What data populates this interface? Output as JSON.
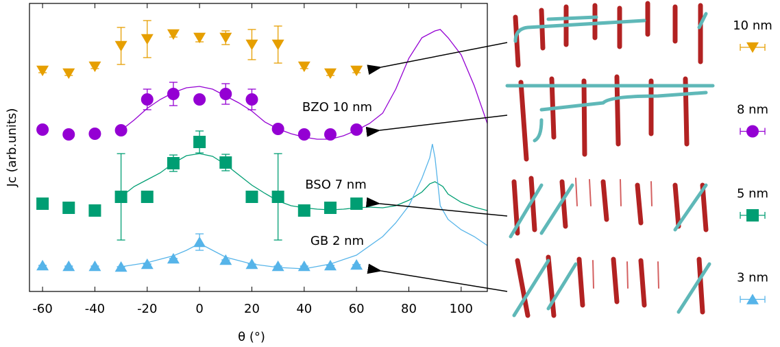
{
  "chart_data": {
    "type": "scatter",
    "x_label": "θ (°)",
    "y_label": "Jc (arb.units)",
    "xlim": [
      -65,
      110
    ],
    "ylim": [
      0,
      420
    ],
    "xticks": [
      -60,
      -40,
      -20,
      0,
      20,
      40,
      60,
      80,
      100
    ],
    "x": [
      -60,
      -50,
      -40,
      -30,
      -20,
      -10,
      0,
      10,
      20,
      30,
      40,
      50,
      60
    ],
    "series": [
      {
        "name": "10 nm",
        "color": "#e69f00",
        "marker": "triangle-down",
        "values": [
          322,
          318,
          328,
          358,
          368,
          375,
          370,
          370,
          360,
          360,
          328,
          318,
          322
        ],
        "errors": [
          3,
          3,
          3,
          27,
          27,
          4,
          6,
          10,
          22,
          27,
          3,
          3,
          3
        ]
      },
      {
        "name": "8 nm",
        "color": "#9400d3",
        "marker": "circle",
        "values": [
          236,
          229,
          230,
          235,
          280,
          288,
          280,
          288,
          280,
          237,
          229,
          229,
          236
        ],
        "errors": [
          0,
          0,
          0,
          0,
          15,
          17,
          0,
          15,
          15,
          0,
          0,
          0,
          0
        ]
      },
      {
        "name": "5 nm",
        "color": "#009e73",
        "marker": "square",
        "values": [
          128,
          122,
          118,
          138,
          138,
          187,
          218,
          188,
          138,
          138,
          118,
          122,
          128
        ],
        "errors": [
          0,
          0,
          0,
          63,
          0,
          12,
          16,
          12,
          0,
          63,
          0,
          0,
          0
        ]
      },
      {
        "name": "3 nm",
        "color": "#56b4e9",
        "marker": "triangle-up",
        "values": [
          38,
          37,
          37,
          36,
          40,
          48,
          72,
          46,
          40,
          37,
          37,
          38,
          39
        ],
        "errors": [
          0,
          0,
          0,
          0,
          0,
          0,
          12,
          0,
          0,
          0,
          0,
          0,
          0
        ]
      }
    ],
    "curves": [
      {
        "color": "#9400d3",
        "x": [
          -30,
          -25,
          -20,
          -15,
          -10,
          -5,
          0,
          5,
          10,
          15,
          20,
          25,
          30,
          35,
          40,
          45,
          50,
          55,
          60,
          65,
          70,
          75,
          80,
          85,
          90,
          92,
          95,
          100,
          105,
          110
        ],
        "values": [
          235,
          250,
          267,
          280,
          290,
          297,
          299,
          295,
          285,
          275,
          263,
          247,
          237,
          230,
          225,
          222,
          222,
          227,
          235,
          245,
          260,
          295,
          340,
          370,
          380,
          382,
          370,
          345,
          300,
          245
        ]
      },
      {
        "color": "#009e73",
        "x": [
          -30,
          -25,
          -20,
          -15,
          -10,
          -5,
          0,
          5,
          10,
          15,
          20,
          25,
          30,
          35,
          40,
          45,
          50,
          55,
          60,
          65,
          70,
          75,
          80,
          85,
          88,
          90,
          93,
          95,
          100,
          105,
          110
        ],
        "values": [
          138,
          153,
          163,
          173,
          187,
          198,
          201,
          197,
          185,
          170,
          155,
          143,
          132,
          125,
          122,
          120,
          119,
          120,
          122,
          123,
          122,
          125,
          133,
          145,
          157,
          160,
          153,
          142,
          130,
          123,
          118
        ]
      },
      {
        "color": "#56b4e9",
        "x": [
          -30,
          -20,
          -10,
          -5,
          0,
          5,
          10,
          20,
          30,
          40,
          50,
          60,
          70,
          75,
          80,
          85,
          88,
          89,
          90,
          92,
          95,
          100,
          105,
          110
        ],
        "values": [
          36,
          42,
          52,
          60,
          70,
          60,
          50,
          40,
          35,
          33,
          40,
          53,
          80,
          100,
          125,
          165,
          195,
          215,
          195,
          125,
          105,
          90,
          80,
          67
        ]
      }
    ],
    "annotations": [
      "BZO 10 nm",
      "BSO 7 nm",
      "GB 2 nm"
    ]
  }
}
